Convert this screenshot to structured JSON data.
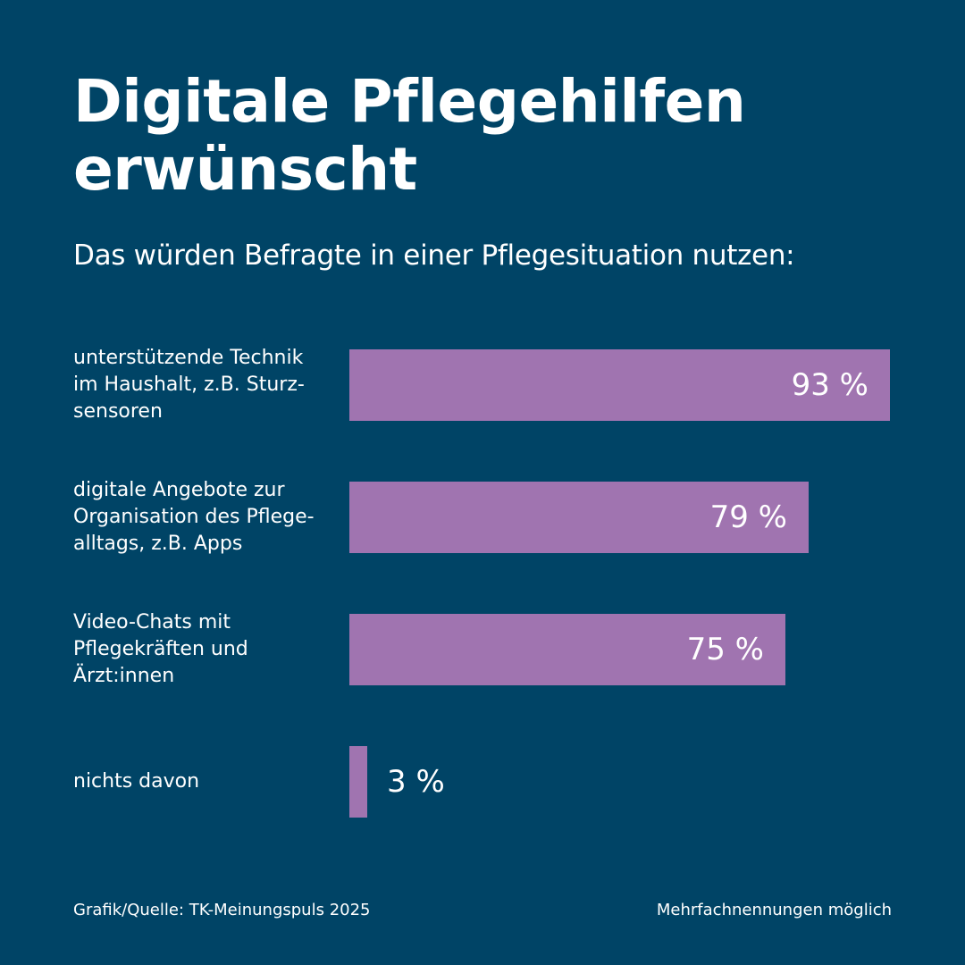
{
  "title": "Digitale Pflegehilfen erwünscht",
  "subtitle": "Das würden Befragte in einer Pflegesituation nutzen:",
  "colors": {
    "background": "#004466",
    "bar": "#a074b0",
    "text": "#ffffff"
  },
  "chart_data": {
    "type": "bar",
    "orientation": "horizontal",
    "categories": [
      "unterstützende Technik im Haushalt, z.B. Sturz-sensoren",
      "digitale Angebote zur Organisation des Pflege-alltags, z.B. Apps",
      "Video-Chats mit Pflegekräften und Ärzt:innen",
      "nichts davon"
    ],
    "values": [
      93,
      79,
      75,
      3
    ],
    "value_labels": [
      "93 %",
      "79 %",
      "75 %",
      "3 %"
    ],
    "unit": "%",
    "xlim": [
      0,
      100
    ],
    "grid": false,
    "legend": "none"
  },
  "footer": {
    "source": "Grafik/Quelle: TK-Meinungspuls 2025",
    "note": "Mehrfachnennungen möglich"
  }
}
